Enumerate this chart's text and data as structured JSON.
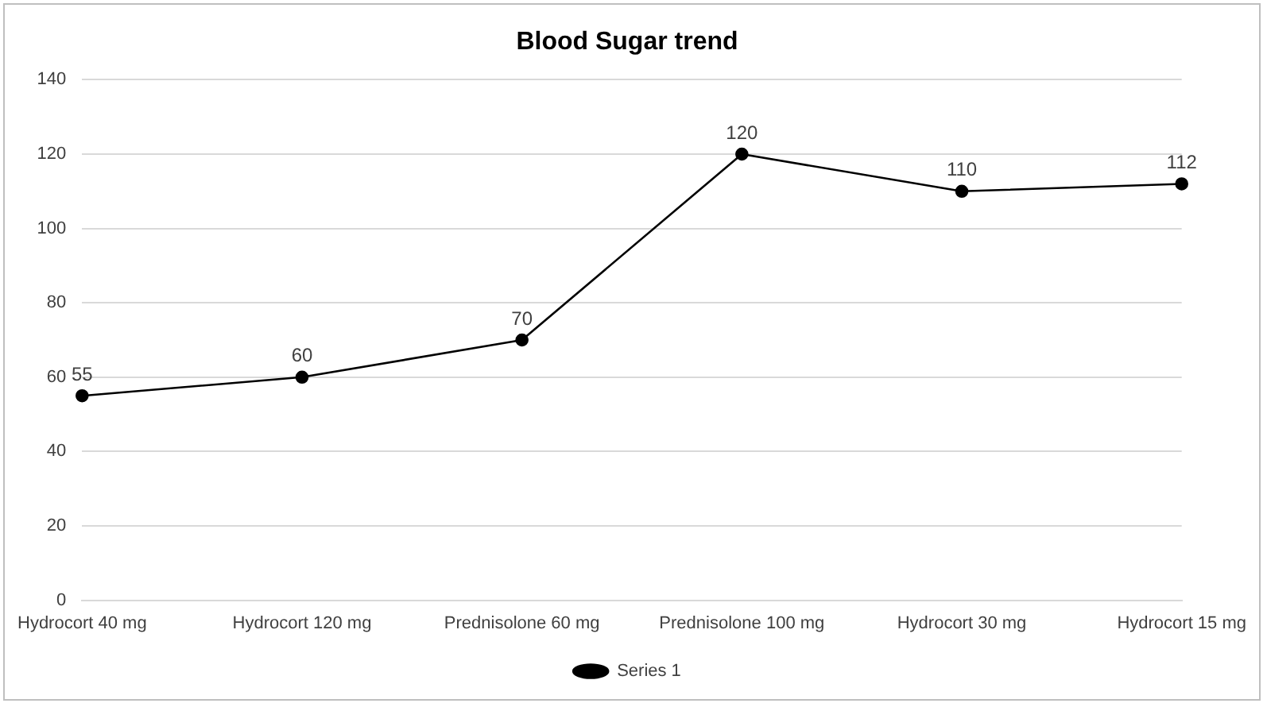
{
  "chart_data": {
    "type": "line",
    "title": "Blood Sugar trend",
    "categories": [
      "Hydrocort 40 mg",
      "Hydrocort 120 mg",
      "Prednisolone 60 mg",
      "Prednisolone 100 mg",
      "Hydrocort 30 mg",
      "Hydrocort 15 mg"
    ],
    "series": [
      {
        "name": "Series 1",
        "color": "#000000",
        "values": [
          55,
          60,
          70,
          120,
          110,
          112
        ]
      }
    ],
    "ylim": [
      0,
      140
    ],
    "yticks": [
      0,
      20,
      40,
      60,
      80,
      100,
      120,
      140
    ],
    "grid": "y",
    "legend": "bottom",
    "marker": "circle",
    "line_style": "solid",
    "data_labels": true
  }
}
